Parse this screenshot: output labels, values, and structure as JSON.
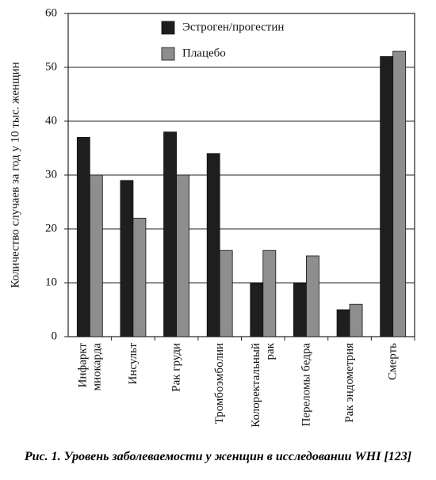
{
  "chart_data": {
    "type": "bar",
    "ylabel": "Количество случаев за год у 10 тыс. женщин",
    "caption": "Рис. 1. Уровень заболеваемости у женщин в исследовании WHI [123]",
    "categories": [
      "Инфаркт\nмиокарда",
      "Инсульт",
      "Рак груди",
      "Тромбоэмболии",
      "Колоректальный\nрак",
      "Переломы бедра",
      "Рак эндометрия",
      "Смерть"
    ],
    "series": [
      {
        "name": "Эстроген/прогестин",
        "color": "#1e1e1e",
        "values": [
          37,
          29,
          38,
          34,
          10,
          10,
          5,
          52
        ]
      },
      {
        "name": "Плацебо",
        "color": "#8e8e8e",
        "values": [
          30,
          22,
          30,
          16,
          16,
          15,
          6,
          53
        ]
      }
    ],
    "ylim": [
      0,
      60
    ],
    "yticks": [
      0,
      10,
      20,
      30,
      40,
      50,
      60
    ],
    "grid": true,
    "legend": "top-center"
  }
}
